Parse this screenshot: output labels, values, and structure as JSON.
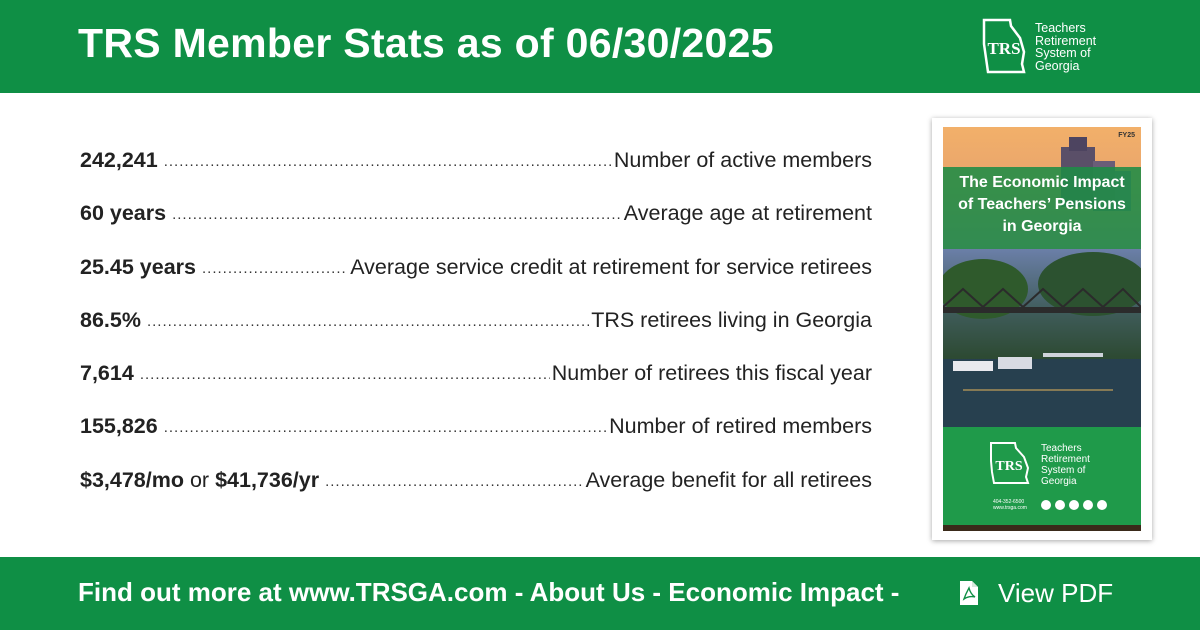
{
  "header": {
    "title": "TRS Member Stats as of 06/30/2025",
    "logo": {
      "mark": "TRS",
      "name_lines": [
        "Teachers",
        "Retirement",
        "System of",
        "Georgia"
      ]
    }
  },
  "stats": [
    {
      "value": "242,241",
      "label": "Number of active members"
    },
    {
      "value": "60 years",
      "label": "Average age at retirement"
    },
    {
      "value": "25.45 years",
      "label": "Average service credit at retirement for service retirees"
    },
    {
      "value": "86.5%",
      "label": "TRS retirees living in Georgia"
    },
    {
      "value": "7,614",
      "label": "Number of retirees this fiscal year"
    },
    {
      "value": "155,826",
      "label": "Number of retired members"
    },
    {
      "value_monthly": "$3,478/mo",
      "value_connector": "or",
      "value_yearly": "$41,736/yr",
      "label": "Average benefit for all retirees"
    }
  ],
  "report_cover": {
    "fiscal_year": "FY25",
    "title_lines": [
      "The Economic Impact",
      "of Teachers’ Pensions",
      "in Georgia"
    ],
    "org_lines": [
      "Teachers",
      "Retirement",
      "System of",
      "Georgia"
    ],
    "phone": "404-352-6500",
    "website": "www.trsga.com",
    "social_icons": [
      "facebook-icon",
      "linkedin-icon",
      "youtube-icon",
      "spotify-icon",
      "instagram-icon"
    ]
  },
  "footer": {
    "text": "Find out more at www.TRSGA.com - About Us - Economic Impact -",
    "pdf_label": "View PDF",
    "pdf_icon": "pdf-file-icon"
  },
  "colors": {
    "brand_green": "#0f8f45",
    "text": "#222222",
    "white": "#ffffff"
  }
}
